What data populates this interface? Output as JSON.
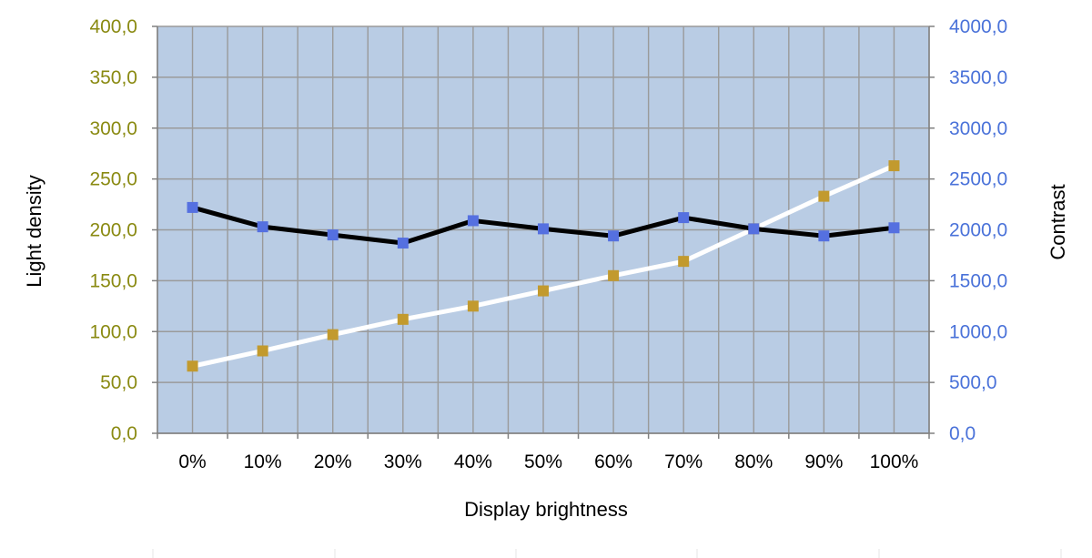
{
  "chart_data": {
    "type": "line",
    "xlabel": "Display brightness",
    "ylabel_left": "Light density",
    "ylabel_right": "Contrast",
    "categories": [
      "0%",
      "10%",
      "20%",
      "30%",
      "40%",
      "50%",
      "60%",
      "70%",
      "80%",
      "90%",
      "100%"
    ],
    "y_left": {
      "range": [
        0,
        400
      ],
      "ticks": [
        "0,0",
        "50,0",
        "100,0",
        "150,0",
        "200,0",
        "250,0",
        "300,0",
        "350,0",
        "400,0"
      ],
      "tick_color": "#8a8a12"
    },
    "y_right": {
      "range": [
        0,
        4000
      ],
      "ticks": [
        "0,0",
        "500,0",
        "1000,0",
        "1500,0",
        "2000,0",
        "2500,0",
        "3000,0",
        "3500,0",
        "4000,0"
      ],
      "tick_color": "#4a72d9"
    },
    "series": [
      {
        "axis": "left",
        "line_color": "#ffffff",
        "marker_color": "#c29a2e",
        "values": [
          66,
          81,
          97,
          112,
          125,
          140,
          155,
          169,
          201,
          233,
          263
        ]
      },
      {
        "axis": "right",
        "line_color": "#000000",
        "marker_color": "#5570e0",
        "values": [
          2220,
          2030,
          1950,
          1870,
          2090,
          2010,
          1940,
          2120,
          2010,
          1940,
          2020
        ]
      }
    ],
    "plot_background": "#b9cce4",
    "grid": true
  }
}
